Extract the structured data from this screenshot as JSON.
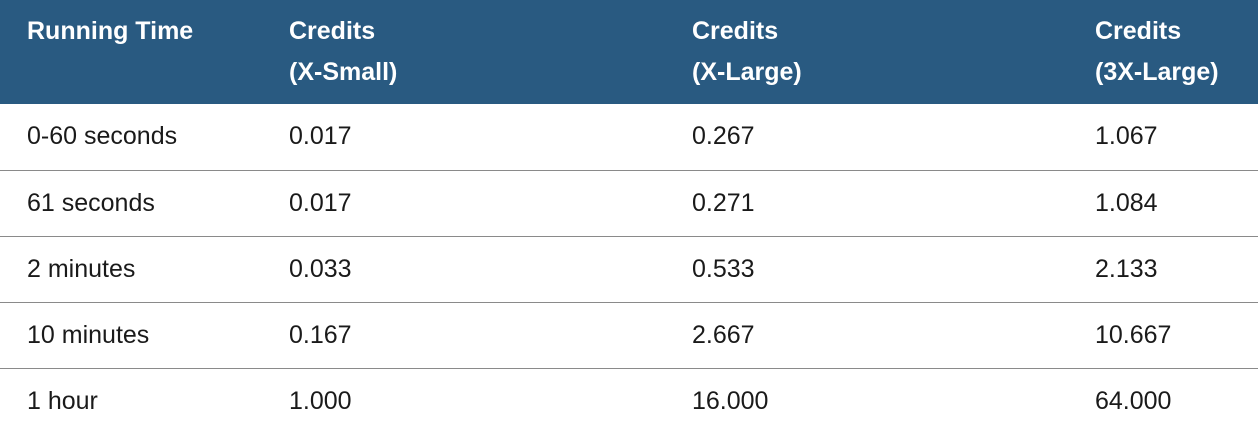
{
  "table": {
    "headers": [
      {
        "line1": "Running Time",
        "line2": ""
      },
      {
        "line1": "Credits",
        "line2": "(X-Small)"
      },
      {
        "line1": "Credits",
        "line2": "(X-Large)"
      },
      {
        "line1": "Credits",
        "line2": "(3X-Large)"
      }
    ],
    "rows": [
      [
        "0-60 seconds",
        "0.017",
        "0.267",
        "1.067"
      ],
      [
        "61 seconds",
        "0.017",
        "0.271",
        "1.084"
      ],
      [
        "2 minutes",
        "0.033",
        "0.533",
        "2.133"
      ],
      [
        "10 minutes",
        "0.167",
        "2.667",
        "10.667"
      ],
      [
        "1 hour",
        "1.000",
        "16.000",
        "64.000"
      ]
    ],
    "colors": {
      "header_bg": "#295a81",
      "header_text": "#ffffff",
      "row_divider": "#8a8a8a"
    }
  }
}
